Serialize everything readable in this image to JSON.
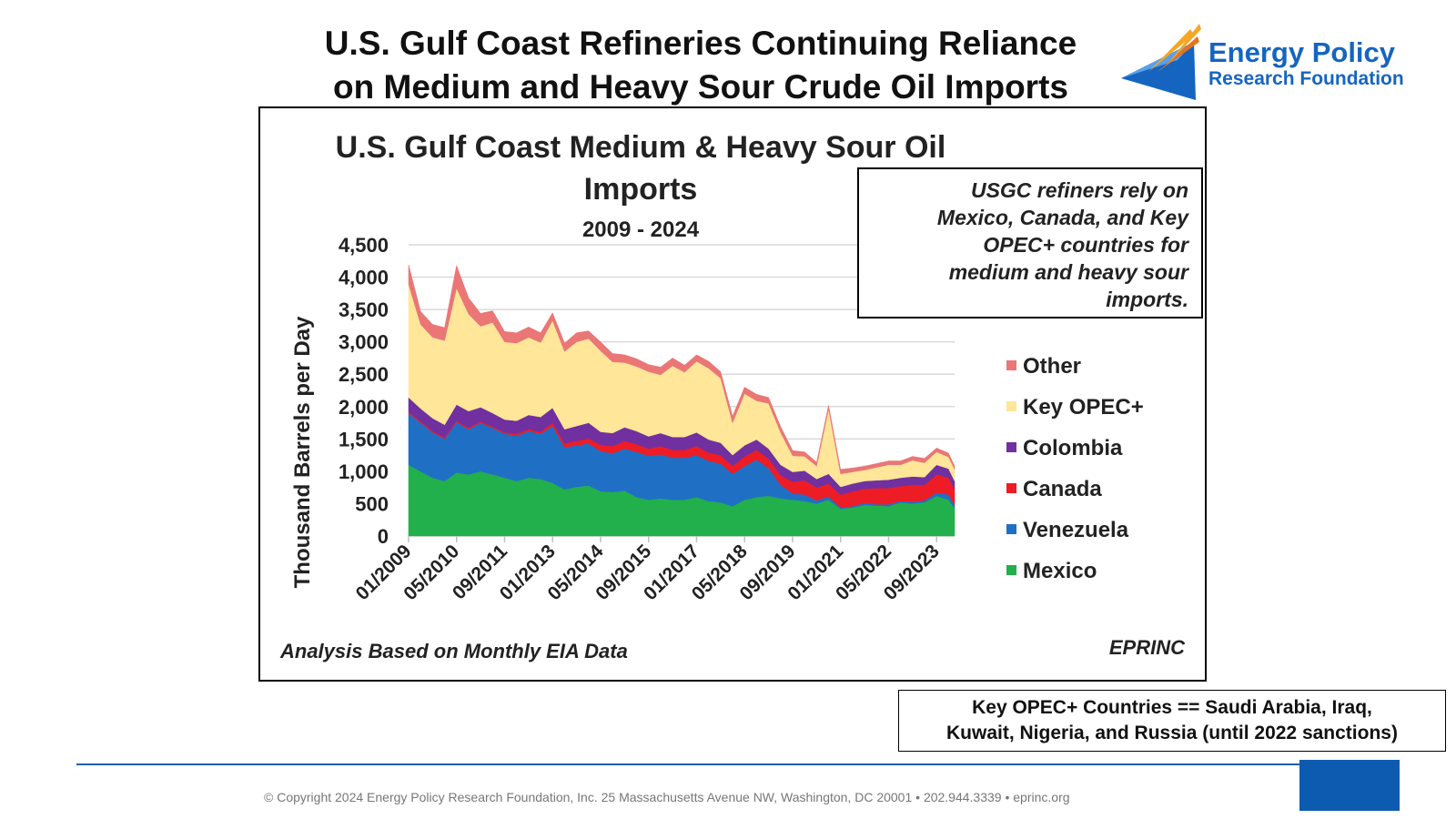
{
  "slide": {
    "title_line1": "U.S. Gulf Coast Refineries Continuing Reliance",
    "title_line2": "on Medium and Heavy Sour Crude Oil Imports"
  },
  "logo": {
    "line1": "Energy Policy",
    "line2": "Research Foundation",
    "accent_colors": [
      "#f5a623",
      "#e8711c",
      "#1565c0"
    ]
  },
  "callout": {
    "lines": [
      "USGC refiners rely on",
      "Mexico, Canada, and Key",
      "OPEC+ countries for",
      "medium and heavy sour",
      "imports."
    ]
  },
  "note": {
    "line1": "Key OPEC+ Countries == Saudi Arabia, Iraq,",
    "line2": "Kuwait, Nigeria, and Russia (until 2022 sanctions)"
  },
  "footer": {
    "text": "© Copyright 2024 Energy Policy Research Foundation, Inc. 25 Massachusetts Avenue NW, Washington, DC 20001 • 202.944.3339 • eprinc.org"
  },
  "chart_data": {
    "type": "area",
    "stacked": true,
    "title_line1": "U.S. Gulf Coast Medium & Heavy Sour Oil",
    "title_line2": "Imports",
    "subtitle": "2009 - 2024",
    "ylabel": "Thousand Barrels per Day",
    "xlabel": "",
    "ylim": [
      0,
      4500
    ],
    "yticks": [
      "0",
      "500",
      "1,000",
      "1,500",
      "2,000",
      "2,500",
      "3,000",
      "3,500",
      "4,000",
      "4,500"
    ],
    "xticks": [
      "01/2009",
      "05/2010",
      "09/2011",
      "01/2013",
      "05/2014",
      "09/2015",
      "01/2017",
      "05/2018",
      "09/2019",
      "01/2021",
      "05/2022",
      "09/2023"
    ],
    "grid": true,
    "legend_position": "right",
    "source_left": "Analysis Based on Monthly EIA Data",
    "source_right": "EPRINC",
    "x": [
      "01/2009",
      "05/2009",
      "09/2009",
      "01/2010",
      "05/2010",
      "09/2010",
      "01/2011",
      "05/2011",
      "09/2011",
      "01/2012",
      "05/2012",
      "09/2012",
      "01/2013",
      "05/2013",
      "09/2013",
      "01/2014",
      "05/2014",
      "09/2014",
      "01/2015",
      "05/2015",
      "09/2015",
      "01/2016",
      "05/2016",
      "09/2016",
      "01/2017",
      "05/2017",
      "09/2017",
      "01/2018",
      "05/2018",
      "09/2018",
      "01/2019",
      "05/2019",
      "09/2019",
      "01/2020",
      "05/2020",
      "09/2020",
      "01/2021",
      "05/2021",
      "09/2021",
      "01/2022",
      "05/2022",
      "09/2022",
      "01/2023",
      "05/2023",
      "09/2023",
      "01/2024",
      "03/2024"
    ],
    "series": [
      {
        "name": "Mexico",
        "color": "#21b04b",
        "values": [
          1100,
          1000,
          900,
          850,
          980,
          950,
          1000,
          950,
          900,
          850,
          900,
          880,
          820,
          720,
          760,
          780,
          690,
          680,
          700,
          600,
          560,
          580,
          560,
          560,
          600,
          540,
          520,
          460,
          560,
          600,
          620,
          580,
          560,
          540,
          500,
          560,
          420,
          440,
          480,
          470,
          460,
          520,
          500,
          520,
          620,
          560,
          430
        ]
      },
      {
        "name": "Venezuela",
        "color": "#1f6fc5",
        "values": [
          800,
          750,
          700,
          650,
          780,
          700,
          750,
          720,
          680,
          700,
          720,
          700,
          880,
          650,
          640,
          650,
          620,
          600,
          650,
          700,
          680,
          680,
          650,
          650,
          650,
          620,
          600,
          500,
          520,
          580,
          430,
          210,
          100,
          100,
          50,
          50,
          20,
          20,
          30,
          20,
          30,
          20,
          30,
          30,
          50,
          80,
          50
        ]
      },
      {
        "name": "Canada",
        "color": "#ee1c25",
        "values": [
          20,
          20,
          20,
          20,
          20,
          20,
          20,
          20,
          20,
          30,
          30,
          30,
          50,
          60,
          70,
          80,
          100,
          110,
          120,
          120,
          110,
          130,
          120,
          120,
          140,
          130,
          130,
          120,
          150,
          150,
          150,
          150,
          180,
          220,
          200,
          200,
          200,
          230,
          220,
          250,
          250,
          230,
          260,
          240,
          280,
          260,
          240
        ]
      },
      {
        "name": "Colombia",
        "color": "#7030a0",
        "values": [
          220,
          200,
          200,
          200,
          250,
          260,
          220,
          210,
          200,
          200,
          220,
          230,
          230,
          220,
          230,
          240,
          200,
          200,
          210,
          200,
          190,
          200,
          200,
          200,
          210,
          200,
          190,
          170,
          170,
          160,
          150,
          160,
          150,
          150,
          130,
          150,
          120,
          120,
          120,
          120,
          130,
          130,
          130,
          120,
          150,
          140,
          130
        ]
      },
      {
        "name": "Key OPEC+",
        "color": "#ffe699",
        "values": [
          1750,
          1300,
          1250,
          1300,
          1800,
          1500,
          1250,
          1400,
          1200,
          1200,
          1200,
          1150,
          1350,
          1200,
          1300,
          1300,
          1250,
          1100,
          1000,
          1000,
          1000,
          900,
          1100,
          1000,
          1100,
          1100,
          1000,
          500,
          800,
          600,
          700,
          500,
          250,
          220,
          200,
          1000,
          200,
          180,
          170,
          200,
          230,
          200,
          250,
          220,
          200,
          180,
          180
        ]
      },
      {
        "name": "Other",
        "color": "#ea7676",
        "values": [
          300,
          200,
          200,
          200,
          350,
          250,
          200,
          180,
          160,
          160,
          160,
          150,
          120,
          130,
          140,
          120,
          140,
          130,
          120,
          120,
          110,
          120,
          120,
          110,
          100,
          110,
          100,
          100,
          100,
          100,
          90,
          90,
          80,
          70,
          60,
          60,
          70,
          60,
          60,
          60,
          60,
          60,
          60,
          70,
          60,
          60,
          50
        ]
      }
    ]
  }
}
